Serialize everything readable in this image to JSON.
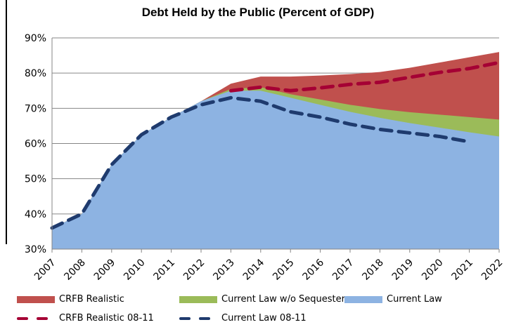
{
  "chart_data": {
    "type": "area",
    "title": "Debt Held by the Public (Percent of GDP)",
    "xlabel": "",
    "ylabel": "",
    "ylim": [
      30,
      90
    ],
    "yticks": [
      "30%",
      "40%",
      "50%",
      "60%",
      "70%",
      "80%",
      "90%"
    ],
    "categories": [
      "2007",
      "2008",
      "2009",
      "2010",
      "2011",
      "2012",
      "2013",
      "2014",
      "2015",
      "2016",
      "2017",
      "2018",
      "2019",
      "2020",
      "2021",
      "2022"
    ],
    "grid": true,
    "legend_position": "bottom",
    "series": [
      {
        "name": "CRFB Realistic",
        "kind": "area",
        "color": "#C0504D",
        "values": [
          36,
          40,
          54,
          62.5,
          67.5,
          72,
          77,
          79,
          79,
          79.3,
          79.7,
          80.3,
          81.5,
          83,
          84.5,
          86
        ]
      },
      {
        "name": "Current Law w/o Sequester",
        "kind": "area",
        "color": "#9BBB59",
        "values": [
          36,
          40,
          54,
          62.5,
          67.5,
          72,
          75.5,
          76,
          74,
          72.5,
          71,
          69.8,
          68.9,
          68.2,
          67.5,
          66.8
        ]
      },
      {
        "name": "Current Law",
        "kind": "area",
        "color": "#8DB3E2",
        "values": [
          36,
          40,
          54,
          62.5,
          67.5,
          72,
          75,
          75,
          73,
          71,
          69,
          67.3,
          65.8,
          64.5,
          63.2,
          62
        ]
      },
      {
        "name": "CRFB Realistic 08-11",
        "kind": "dashed-line",
        "color": "#A50034",
        "values": [
          null,
          null,
          null,
          null,
          null,
          null,
          75,
          76,
          75,
          75.8,
          76.8,
          77.4,
          78.8,
          80.2,
          81.3,
          83
        ]
      },
      {
        "name": "Current Law 08-11",
        "kind": "dashed-line",
        "color": "#1F3B6E",
        "values": [
          36,
          40,
          54,
          62.5,
          67.5,
          71,
          73,
          72,
          69,
          67.5,
          65.5,
          64,
          63,
          62,
          60.5,
          null
        ]
      }
    ]
  }
}
